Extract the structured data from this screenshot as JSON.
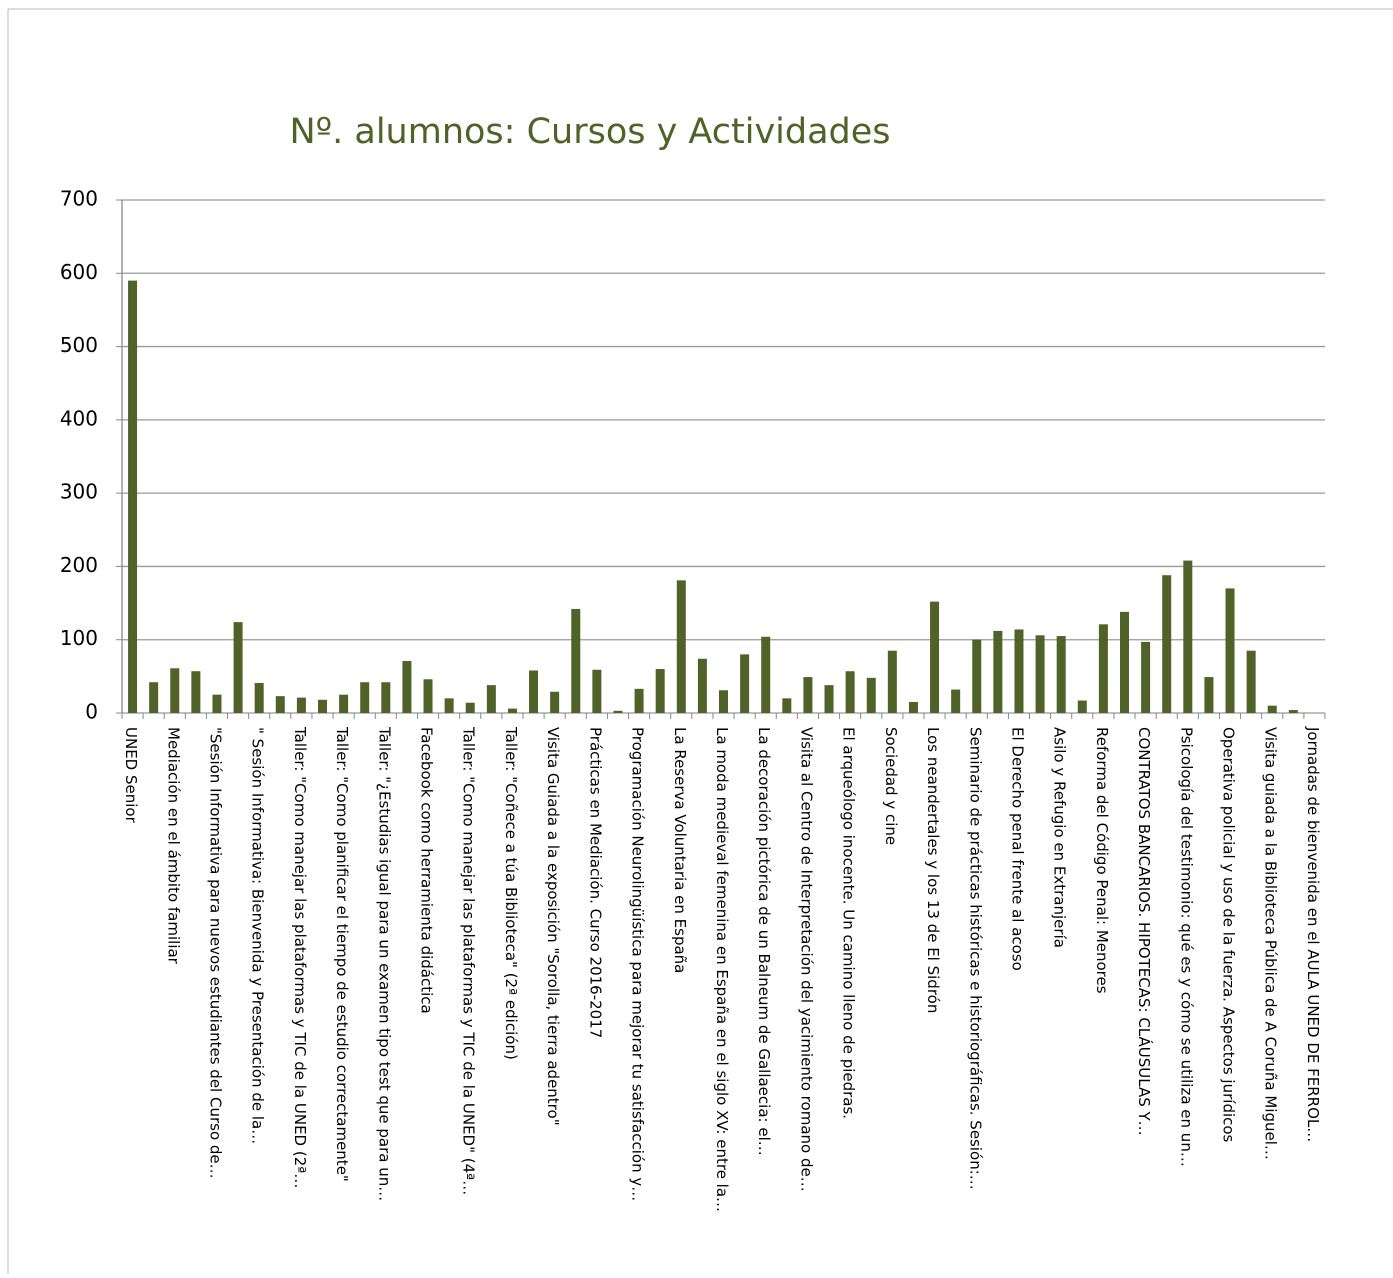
{
  "chart_data": {
    "type": "bar",
    "title": "Nº. alumnos: Cursos y Actividades",
    "color": "#4f6228",
    "grid": true,
    "ylim": [
      0,
      700
    ],
    "yticks": [
      0,
      100,
      200,
      300,
      400,
      500,
      600,
      700
    ],
    "categories": [
      "UNED Senior",
      null,
      "Mediación en el ámbito familiar",
      null,
      "\"Sesión Informativa para nuevos estudiantes del Curso de…",
      null,
      "\" Sesión Informativa: Bienvenida y Presentación de la…",
      null,
      "Taller: \"Como manejar las plataformas y TIC de la UNED (2ª…",
      null,
      "Taller: \"Como planificar el tiempo de estudio correctamente\"",
      null,
      "Taller: \"¿Estudias igual para un examen tipo test que para un…",
      null,
      "Facebook como herramienta didáctica",
      null,
      "Taller: \"Como manejar las plataformas y TIC de la UNED\" (4ª…",
      null,
      "Taller: \"Coñece a túa Biblioteca\" (2ª edición)",
      null,
      "Visita Guiada a la exposición \"Sorolla, tierra adentro\"",
      null,
      "Prácticas en  Mediación. Curso 2016-2017",
      null,
      "Programación Neurolingüística  para mejorar tu satisfacción y…",
      null,
      "La Reserva Voluntaria en España",
      null,
      "La moda medieval femenina en España en el siglo XV: entre la…",
      null,
      "La decoración pictórica de un Balneum de Gallaecia: el…",
      null,
      "Visita al Centro de Interpretación del yacimiento romano de…",
      null,
      "El arqueólogo inocente. Un camino lleno de piedras.",
      null,
      "Sociedad y cine",
      null,
      "Los neandertales y los 13 de El Sidrón",
      null,
      "Seminario de prácticas históricas e historiográficas. Sesión:…",
      null,
      "El Derecho penal frente al acoso",
      null,
      "Asilo y Refugio en Extranjería",
      null,
      "Reforma del Código Penal: Menores",
      null,
      "CONTRATOS BANCARIOS. HIPOTECAS: CLÁUSULAS Y…",
      null,
      "Psicología del testimonio: qué es y cómo se utiliza en un…",
      null,
      "Operativa policial y uso de la fuerza. Aspectos jurídicos",
      null,
      "Visita guiada a la Biblioteca Pública de A Coruña Miguel…",
      null,
      "Jornadas de bienvenida  en el AULA UNED DE FERROL…"
    ],
    "values": [
      590,
      42,
      61,
      57,
      25,
      124,
      41,
      23,
      21,
      18,
      25,
      42,
      42,
      71,
      46,
      20,
      14,
      38,
      6,
      58,
      29,
      142,
      59,
      3,
      33,
      60,
      181,
      74,
      31,
      80,
      104,
      20,
      49,
      38,
      57,
      48,
      85,
      15,
      152,
      32,
      100,
      112,
      114,
      106,
      105,
      17,
      121,
      138,
      97,
      188,
      208,
      49,
      170,
      85,
      10,
      4,
      0
    ]
  }
}
